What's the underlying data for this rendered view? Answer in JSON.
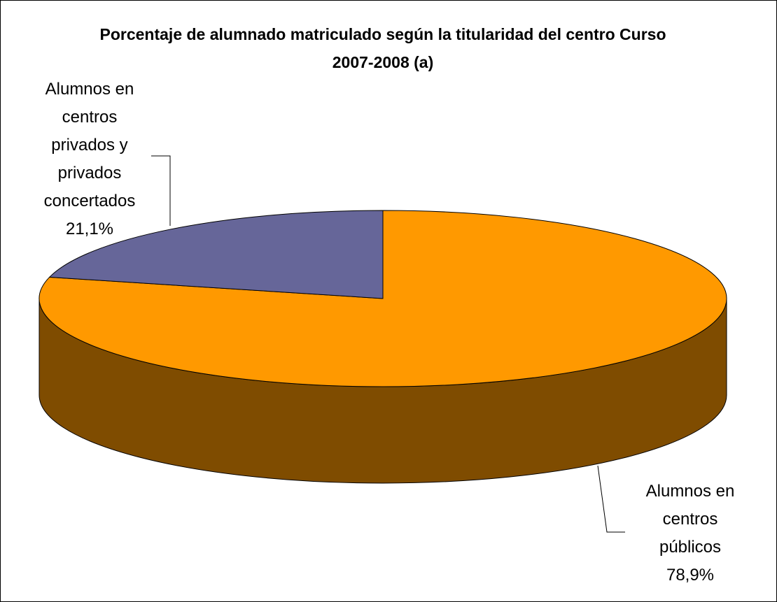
{
  "chart_data": {
    "type": "pie",
    "title": "Porcentaje de alumnado matriculado según la titularidad del centro Curso 2007-2008 (a)",
    "categories": [
      "Alumnos en centros públicos",
      "Alumnos en centros privados y privados concertados"
    ],
    "values": [
      78.9,
      21.1
    ],
    "value_labels": [
      "78,9%",
      "21,1%"
    ],
    "colors": [
      "#ff9900",
      "#666699"
    ]
  }
}
